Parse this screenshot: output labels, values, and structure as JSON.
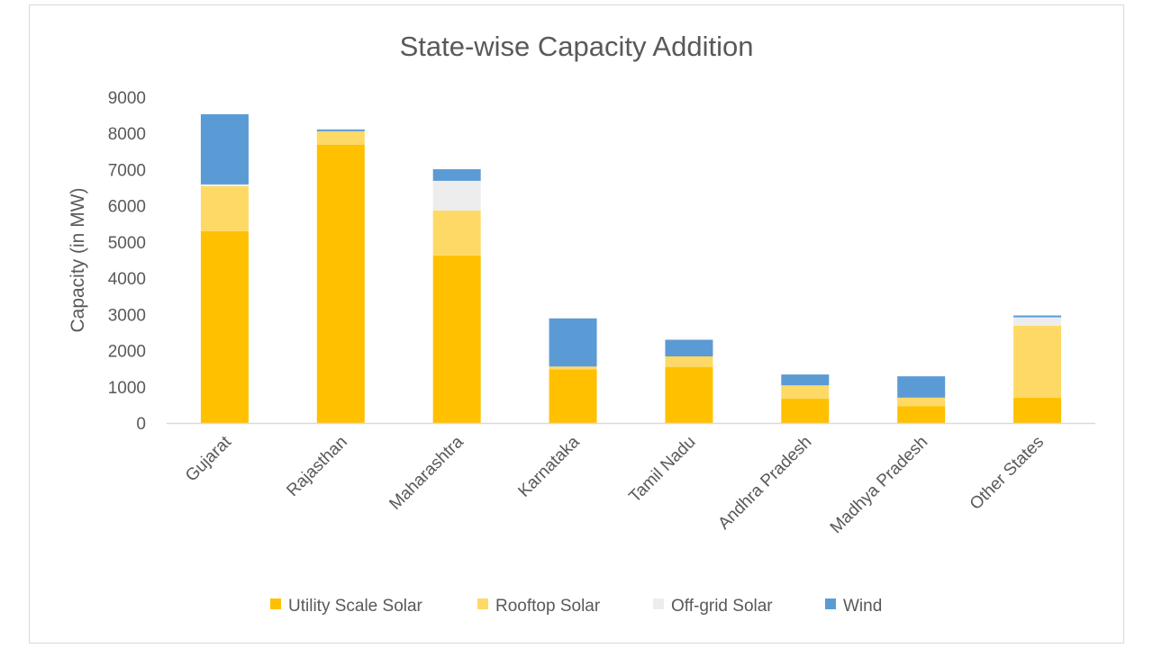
{
  "chart_data": {
    "type": "bar",
    "stacked": true,
    "title": "State-wise Capacity Addition",
    "xlabel": "",
    "ylabel": "Capacity (in MW)",
    "ylim": [
      0,
      9000
    ],
    "yticks": [
      0,
      1000,
      2000,
      3000,
      4000,
      5000,
      6000,
      7000,
      8000,
      9000
    ],
    "grid": false,
    "legend": "bottom",
    "categories": [
      "Gujarat",
      "Rajasthan",
      "Maharashtra",
      "Karnataka",
      "Tamil Nadu",
      "Andhra Pradesh",
      "Madhya Pradesh",
      "Other States"
    ],
    "series": [
      {
        "name": "Utility Scale Solar",
        "color": "#FFC000",
        "values": [
          5300,
          7690,
          4630,
          1480,
          1550,
          670,
          460,
          700
        ]
      },
      {
        "name": "Rooftop Solar",
        "color": "#FFD966",
        "values": [
          1240,
          370,
          1240,
          80,
          290,
          370,
          240,
          1990
        ]
      },
      {
        "name": "Off-grid Solar",
        "color": "#EDEDED",
        "values": [
          50,
          0,
          820,
          0,
          0,
          0,
          0,
          230
        ]
      },
      {
        "name": "Wind",
        "color": "#5B9BD5",
        "values": [
          1940,
          50,
          320,
          1330,
          460,
          300,
          590,
          50
        ]
      }
    ]
  }
}
